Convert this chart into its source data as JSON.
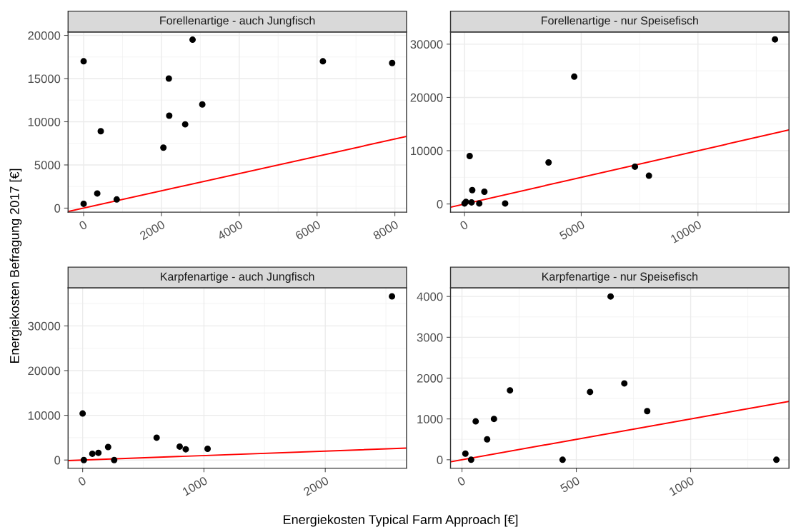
{
  "chart_data": [
    {
      "type": "scatter",
      "title": "Forellenartige - auch Jungfisch",
      "ylabel": "Energiekosten Befragung 2017 [€]",
      "grid": true,
      "xlim": [
        -400,
        8300
      ],
      "ylim": [
        -470,
        20400
      ],
      "xticks": [
        0,
        2000,
        4000,
        6000,
        8000
      ],
      "yticks": [
        0,
        5000,
        10000,
        15000,
        20000
      ],
      "series": [
        {
          "marker": "circle",
          "color": "#000000",
          "x": [
            0,
            0,
            350,
            440,
            850,
            2050,
            2190,
            2200,
            2610,
            2800,
            3050,
            6150,
            7930
          ],
          "values": [
            17000,
            500,
            1700,
            8900,
            1000,
            7000,
            15000,
            10700,
            9700,
            19500,
            12000,
            17000,
            16800
          ]
        },
        {
          "type": "line",
          "color": "#ff0000",
          "x": [
            -400,
            8300
          ],
          "values": [
            -400,
            8300
          ]
        }
      ]
    },
    {
      "type": "scatter",
      "title": "Forellenartige - nur Speisefisch",
      "grid": true,
      "xlim": [
        -600,
        13900
      ],
      "ylim": [
        -1540,
        32300
      ],
      "xticks": [
        0,
        5000,
        10000
      ],
      "yticks": [
        0,
        10000,
        20000,
        30000
      ],
      "series": [
        {
          "marker": "circle",
          "color": "#000000",
          "x": [
            13300,
            4700,
            220,
            3600,
            7300,
            7900,
            330,
            850,
            0,
            60,
            300,
            630,
            1740
          ],
          "values": [
            30900,
            23900,
            9000,
            7800,
            7000,
            5300,
            2600,
            2300,
            100,
            400,
            300,
            100,
            100
          ]
        },
        {
          "type": "line",
          "color": "#ff0000",
          "x": [
            -600,
            13900
          ],
          "values": [
            -600,
            13900
          ]
        }
      ]
    },
    {
      "type": "scatter",
      "title": "Karpfenartige - auch Jungfisch",
      "xlabel": "Energiekosten Typical Farm Approach [€]",
      "grid": true,
      "xlim": [
        -120,
        2670
      ],
      "ylim": [
        -1820,
        38500
      ],
      "xticks": [
        0,
        1000,
        2000
      ],
      "yticks": [
        0,
        10000,
        20000,
        30000
      ],
      "series": [
        {
          "marker": "circle",
          "color": "#000000",
          "x": [
            2550,
            0,
            610,
            800,
            850,
            1030,
            210,
            130,
            80,
            10,
            260
          ],
          "values": [
            36600,
            10400,
            5000,
            3000,
            2400,
            2500,
            2900,
            1600,
            1400,
            0,
            0
          ]
        },
        {
          "type": "line",
          "color": "#ff0000",
          "x": [
            -120,
            2670
          ],
          "values": [
            -120,
            2670
          ]
        }
      ]
    },
    {
      "type": "scatter",
      "title": "Karpfenartige - nur Speisefisch",
      "grid": true,
      "xlim": [
        -50,
        1430
      ],
      "ylim": [
        -206,
        4210
      ],
      "xticks": [
        0,
        500,
        1000
      ],
      "yticks": [
        0,
        1000,
        2000,
        3000,
        4000
      ],
      "series": [
        {
          "marker": "circle",
          "color": "#000000",
          "x": [
            650,
            710,
            560,
            210,
            810,
            140,
            60,
            110,
            15,
            40,
            440,
            1375
          ],
          "values": [
            4000,
            1870,
            1660,
            1700,
            1190,
            1000,
            940,
            500,
            150,
            0,
            0,
            0
          ]
        },
        {
          "type": "line",
          "color": "#ff0000",
          "x": [
            -50,
            1430
          ],
          "values": [
            -50,
            1430
          ]
        }
      ]
    }
  ]
}
